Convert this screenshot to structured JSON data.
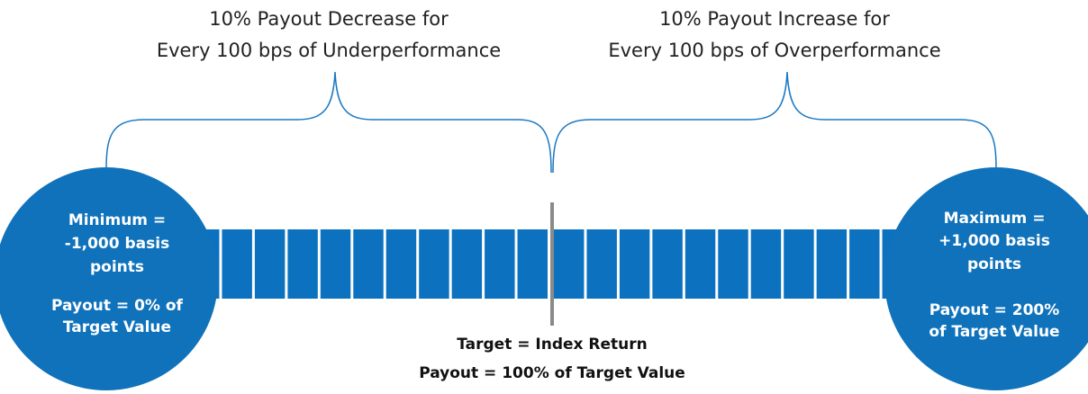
{
  "left_label": {
    "lines": [
      "10% Payout Decrease for",
      "Every 100 bps of Underperformance"
    ]
  },
  "right_label": {
    "lines": [
      "10% Payout Increase for",
      "Every 100 bps of Overperformance"
    ]
  },
  "minimum": {
    "lines": [
      "Minimum =",
      "-1,000 basis",
      "points"
    ],
    "payout": [
      "Payout = 0% of",
      "Target Value"
    ]
  },
  "maximum": {
    "lines": [
      "Maximum =",
      "+1,000 basis",
      "points"
    ],
    "payout": [
      "Payout = 200%",
      "of Target Value"
    ]
  },
  "target": {
    "lines": [
      "Target = Index Return",
      "Payout = 100% of Target Value"
    ]
  }
}
